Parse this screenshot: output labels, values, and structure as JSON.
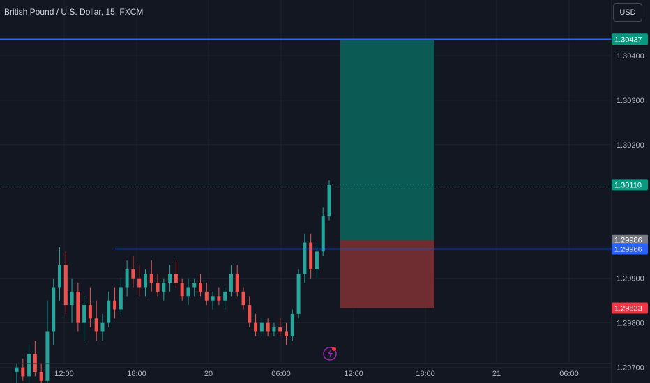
{
  "header": {
    "title": "British Pound / U.S. Dollar, 15, FXCM",
    "currency_button": "USD"
  },
  "colors": {
    "background": "#131722",
    "up": "#26a69a",
    "down": "#ef5350",
    "line": "#2962ff",
    "target_zone": "#0b5a53",
    "stop_zone": "#6f2c31",
    "grid": "#1e222d"
  },
  "icons": {
    "lightning": "lightning-icon"
  },
  "chart_data": {
    "type": "candlestick",
    "symbol": "GBPUSD",
    "ylim": [
      1.29665,
      1.30525
    ],
    "y_ticks": [
      "1.30400",
      "1.30300",
      "1.30200",
      "1.29900",
      "1.29800",
      "1.29700"
    ],
    "x_ticks": [
      "12:00",
      "18:00",
      "20",
      "06:00",
      "12:00",
      "18:00",
      "21",
      "06:00"
    ],
    "horizontal_lines": [
      {
        "price": 1.30437,
        "label": "1.30437",
        "color": "#2962ff"
      },
      {
        "price": 1.29966,
        "label": "1.29966",
        "color": "#2962ff"
      }
    ],
    "price_labels": [
      {
        "price": 1.30437,
        "label": "1.30437",
        "color": "#089981"
      },
      {
        "price": 1.3011,
        "label": "1.30110",
        "color": "#089981"
      },
      {
        "price": 1.29986,
        "label": "1.29986",
        "color": "#787b86"
      },
      {
        "price": 1.29966,
        "label": "1.29966",
        "color": "#2962ff"
      },
      {
        "price": 1.29833,
        "label": "1.29833",
        "color": "#f23645"
      }
    ],
    "last_price": 1.3011,
    "position": {
      "entry": 1.29986,
      "target": 1.30437,
      "stop": 1.29833
    },
    "candles": [
      [
        1.2969,
        1.2971,
        1.2966,
        1.297
      ],
      [
        1.297,
        1.2972,
        1.2967,
        1.2968
      ],
      [
        1.2968,
        1.2975,
        1.2966,
        1.2973
      ],
      [
        1.2973,
        1.2976,
        1.2968,
        1.2969
      ],
      [
        1.2969,
        1.2971,
        1.2965,
        1.2967
      ],
      [
        1.2967,
        1.2985,
        1.2966,
        1.2978
      ],
      [
        1.2978,
        1.299,
        1.2975,
        1.2988
      ],
      [
        1.2988,
        1.2997,
        1.2985,
        1.2993
      ],
      [
        1.2993,
        1.2996,
        1.2982,
        1.2984
      ],
      [
        1.2984,
        1.299,
        1.298,
        1.2987
      ],
      [
        1.2987,
        1.2989,
        1.2978,
        1.298
      ],
      [
        1.298,
        1.2986,
        1.2976,
        1.2984
      ],
      [
        1.2984,
        1.2988,
        1.2979,
        1.2981
      ],
      [
        1.2981,
        1.2985,
        1.2976,
        1.2978
      ],
      [
        1.2978,
        1.2982,
        1.2976,
        1.298
      ],
      [
        1.298,
        1.2987,
        1.2979,
        1.2985
      ],
      [
        1.2985,
        1.2988,
        1.2981,
        1.2983
      ],
      [
        1.2983,
        1.299,
        1.2982,
        1.2988
      ],
      [
        1.2988,
        1.2994,
        1.2986,
        1.2992
      ],
      [
        1.2992,
        1.2995,
        1.2988,
        1.299
      ],
      [
        1.299,
        1.2993,
        1.2986,
        1.2988
      ],
      [
        1.2988,
        1.2992,
        1.2986,
        1.2991
      ],
      [
        1.2991,
        1.2994,
        1.2987,
        1.2989
      ],
      [
        1.2989,
        1.2991,
        1.2986,
        1.2987
      ],
      [
        1.2987,
        1.299,
        1.2985,
        1.2989
      ],
      [
        1.2989,
        1.2993,
        1.2987,
        1.2991
      ],
      [
        1.2991,
        1.2994,
        1.2988,
        1.2989
      ],
      [
        1.2989,
        1.299,
        1.2985,
        1.2986
      ],
      [
        1.2986,
        1.299,
        1.2984,
        1.2988
      ],
      [
        1.2988,
        1.299,
        1.2986,
        1.2989
      ],
      [
        1.2989,
        1.2991,
        1.2986,
        1.2987
      ],
      [
        1.2987,
        1.2989,
        1.2984,
        1.2985
      ],
      [
        1.2985,
        1.2987,
        1.2983,
        1.2986
      ],
      [
        1.2986,
        1.2988,
        1.2984,
        1.2985
      ],
      [
        1.2985,
        1.2988,
        1.2983,
        1.2987
      ],
      [
        1.2987,
        1.2993,
        1.2986,
        1.2991
      ],
      [
        1.2991,
        1.2993,
        1.2986,
        1.2987
      ],
      [
        1.2987,
        1.2988,
        1.2983,
        1.2984
      ],
      [
        1.2984,
        1.2986,
        1.2979,
        1.298
      ],
      [
        1.298,
        1.2982,
        1.2977,
        1.2978
      ],
      [
        1.2978,
        1.2981,
        1.2977,
        1.298
      ],
      [
        1.298,
        1.2981,
        1.2977,
        1.2978
      ],
      [
        1.2978,
        1.298,
        1.2977,
        1.2979
      ],
      [
        1.2979,
        1.2981,
        1.2977,
        1.2978
      ],
      [
        1.2978,
        1.298,
        1.2975,
        1.2977
      ],
      [
        1.2977,
        1.2983,
        1.2976,
        1.2982
      ],
      [
        1.2982,
        1.2992,
        1.2981,
        1.2991
      ],
      [
        1.2991,
        1.3,
        1.2989,
        1.2998
      ],
      [
        1.2998,
        1.3,
        1.299,
        1.2992
      ],
      [
        1.2992,
        1.2998,
        1.299,
        1.2996
      ],
      [
        1.2996,
        1.3006,
        1.2995,
        1.3004
      ],
      [
        1.3004,
        1.3012,
        1.3003,
        1.3011
      ]
    ]
  }
}
